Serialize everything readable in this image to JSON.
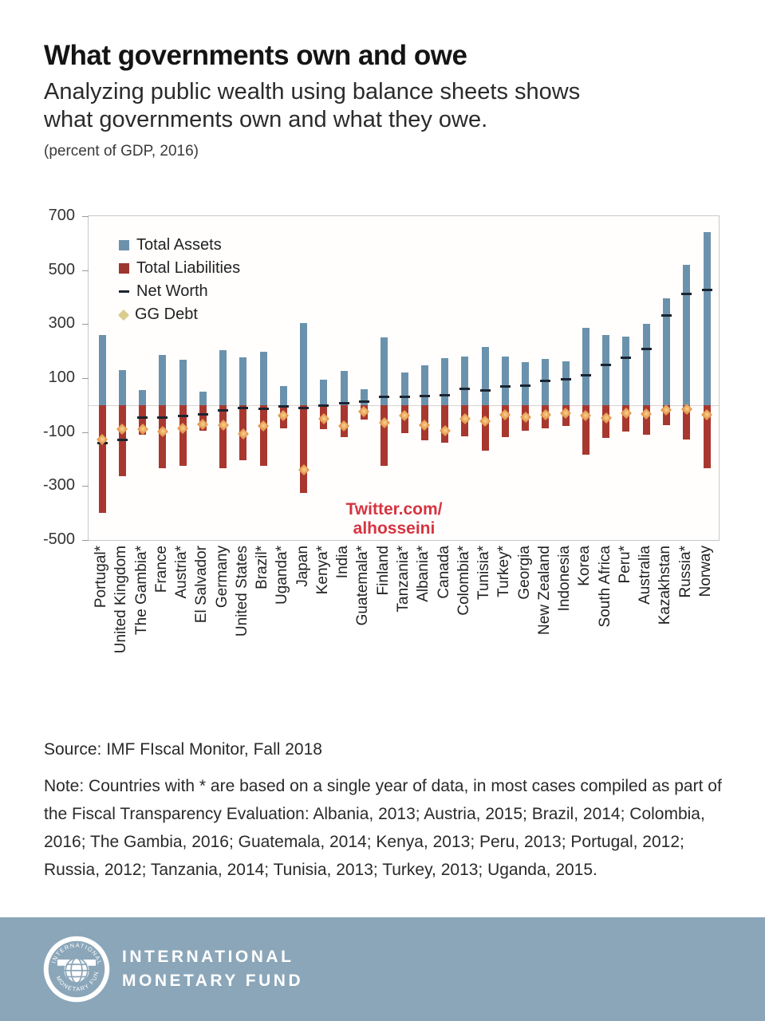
{
  "header": {
    "title": "What governments own and owe",
    "subtitle": "Analyzing public wealth using balance sheets shows what governments own and what they owe.",
    "unit_note": "(percent of GDP, 2016)"
  },
  "watermark": {
    "line1": "Twitter.com/",
    "line2": "alhosseini",
    "color": "#d63440"
  },
  "chart_data": {
    "type": "bar",
    "title": "What governments own and owe",
    "unit": "percent of GDP, 2016",
    "grid": "zero-line only",
    "legend_position": "top-left inside plot",
    "x_tick_rotation": 90,
    "y_axis": {
      "min": -500,
      "max": 700,
      "ticks": [
        700,
        500,
        300,
        100,
        -100,
        -300,
        -500
      ]
    },
    "colors": {
      "assets": "#6b92ad",
      "liabilities": "#a8382f",
      "net_worth": "#1b2430",
      "gg_debt": "#e59a50",
      "gg_debt_legend": "#d9cd8d"
    },
    "legend": [
      {
        "label": "Total Assets",
        "marker": "square",
        "color": "#6b92ad"
      },
      {
        "label": "Total Liabilities",
        "marker": "square",
        "color": "#9e352f"
      },
      {
        "label": "Net Worth",
        "marker": "dash",
        "color": "#1b2430"
      },
      {
        "label": "GG Debt",
        "marker": "diamond",
        "color": "#d9cd8d"
      }
    ],
    "categories": [
      "Portugal*",
      "United Kingdom",
      "The Gambia*",
      "France",
      "Austria*",
      "El Salvador",
      "Germany",
      "United States",
      "Brazil*",
      "Uganda*",
      "Japan",
      "Kenya*",
      "India",
      "Guatemala*",
      "Finland",
      "Tanzania*",
      "Albania*",
      "Canada",
      "Colombia*",
      "Tunisia*",
      "Turkey*",
      "Georgia",
      "New Zealand",
      "Indonesia",
      "Korea",
      "South Africa",
      "Peru*",
      "Australia",
      "Kazakhstan",
      "Russia*",
      "Norway"
    ],
    "series": [
      {
        "name": "Total Assets",
        "values": [
          260,
          130,
          55,
          185,
          167,
          50,
          203,
          178,
          198,
          70,
          305,
          93,
          126,
          58,
          250,
          120,
          148,
          173,
          180,
          215,
          180,
          158,
          170,
          163,
          285,
          260,
          255,
          300,
          395,
          520,
          640
        ]
      },
      {
        "name": "Total Liabilities",
        "values": [
          -400,
          -265,
          -110,
          -235,
          -225,
          -95,
          -235,
          -205,
          -225,
          -85,
          -325,
          -89,
          -120,
          -55,
          -225,
          -104,
          -130,
          -140,
          -117,
          -170,
          -118,
          -95,
          -85,
          -77,
          -185,
          -122,
          -98,
          -110,
          -73,
          -128,
          -235
        ]
      },
      {
        "name": "Net Worth",
        "values": [
          -140,
          -130,
          -45,
          -45,
          -40,
          -35,
          -19,
          -12,
          -14,
          -5,
          -10,
          -3,
          8,
          13,
          30,
          30,
          34,
          36,
          60,
          55,
          70,
          73,
          89,
          95,
          110,
          148,
          175,
          207,
          333,
          412,
          427
        ]
      },
      {
        "name": "GG Debt",
        "values": [
          -128,
          -90,
          -90,
          -98,
          -85,
          -70,
          -75,
          -108,
          -77,
          -38,
          -240,
          -51,
          -76,
          -25,
          -66,
          -40,
          -74,
          -94,
          -52,
          -60,
          -35,
          -45,
          -37,
          -30,
          -40,
          -47,
          -30,
          -34,
          -17,
          -14,
          -36
        ]
      }
    ]
  },
  "notes": {
    "source": "Source: IMF FIscal Monitor, Fall 2018",
    "note": "Note: Countries with * are based on a single year of data, in most cases compiled as part of the Fiscal Transparency Evaluation: Albania, 2013; Austria, 2015; Brazil, 2014; Colombia, 2016; The Gambia, 2016; Guatemala, 2014; Kenya, 2013; Peru, 2013; Portugal, 2012; Russia, 2012; Tanzania, 2014; Tunisia, 2013; Turkey, 2013; Uganda, 2015."
  },
  "footer": {
    "org_line1": "INTERNATIONAL",
    "org_line2": "MONETARY FUND",
    "band_color": "#8ba6b9",
    "logo_text_top": "INTERNATIONAL",
    "logo_text_bottom": "MONETARY FUND"
  }
}
